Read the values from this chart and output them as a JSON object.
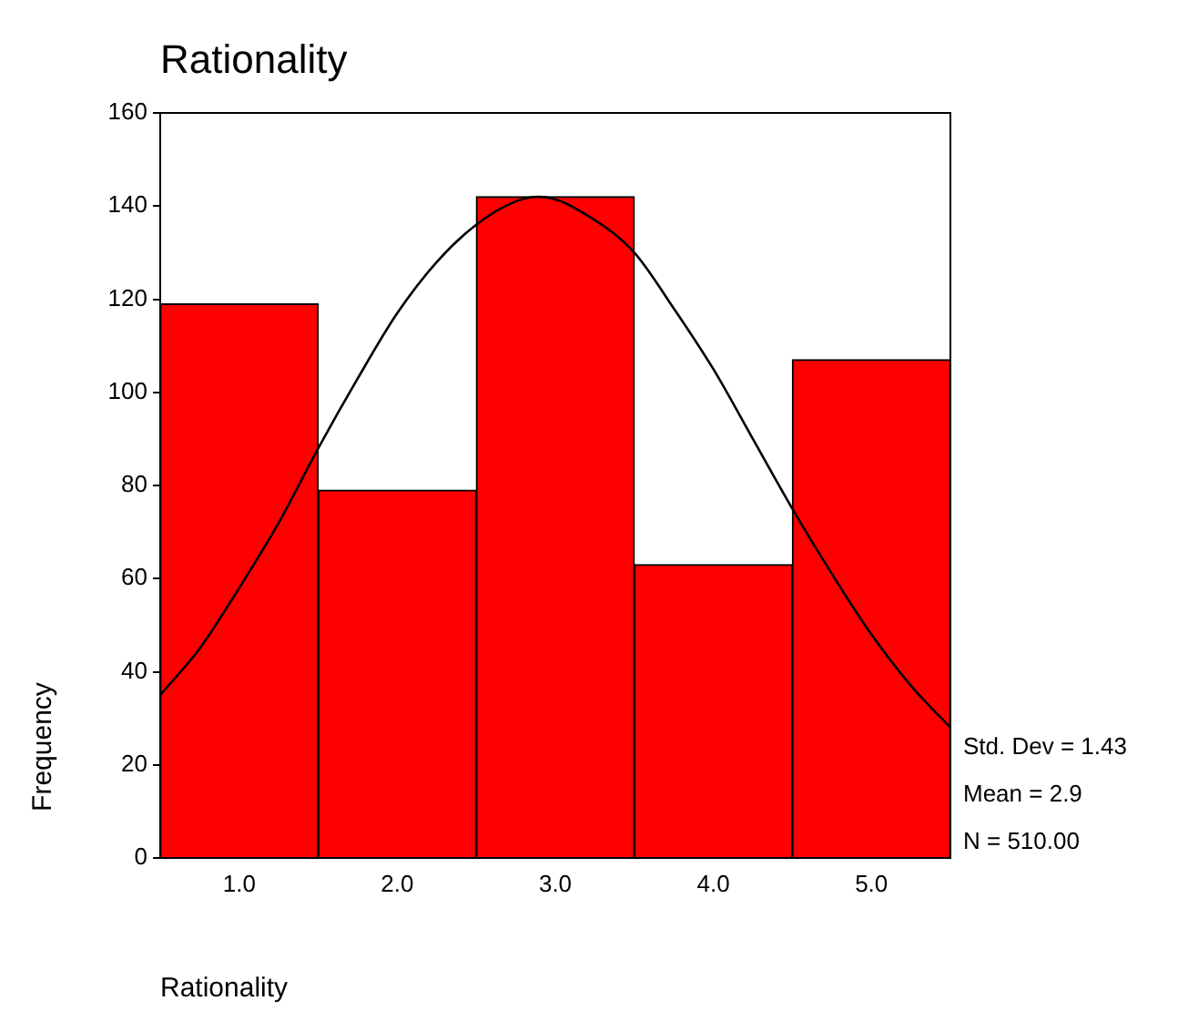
{
  "chart_data": {
    "type": "histogram",
    "title": "Rationality",
    "xlabel": "Rationality",
    "ylabel": "Frequency",
    "bins": [
      0.5,
      1.5,
      2.5,
      3.5,
      4.5,
      5.5
    ],
    "values": [
      119,
      79,
      142,
      63,
      107
    ],
    "color": "#ff0000",
    "xlim": [
      0.5,
      5.5
    ],
    "xticks": [
      {
        "value": 1,
        "label": "1.0"
      },
      {
        "value": 2,
        "label": "2.0"
      },
      {
        "value": 3,
        "label": "3.0"
      },
      {
        "value": 4,
        "label": "4.0"
      },
      {
        "value": 5,
        "label": "5.0"
      }
    ],
    "ylim": [
      0,
      160
    ],
    "yticks": [
      0,
      20,
      40,
      60,
      80,
      100,
      120,
      140,
      160
    ],
    "grid": false,
    "legend": false,
    "series": [
      {
        "type": "line",
        "color": "#000000",
        "x": [
          0.5,
          0.75,
          1,
          1.25,
          1.5,
          1.75,
          2,
          2.25,
          2.5,
          2.75,
          2.9,
          3.25,
          3.5,
          3.75,
          4,
          4.25,
          4.5,
          4.75,
          5,
          5.25,
          5.5
        ],
        "values": [
          35,
          45,
          58,
          72,
          88,
          103,
          117,
          128,
          136,
          141,
          142,
          137,
          130,
          118,
          105,
          90,
          75,
          61,
          48,
          37,
          28
        ]
      }
    ],
    "annotations": [
      "Std. Dev = 1.43",
      "Mean = 2.9",
      "N = 510.00"
    ]
  }
}
